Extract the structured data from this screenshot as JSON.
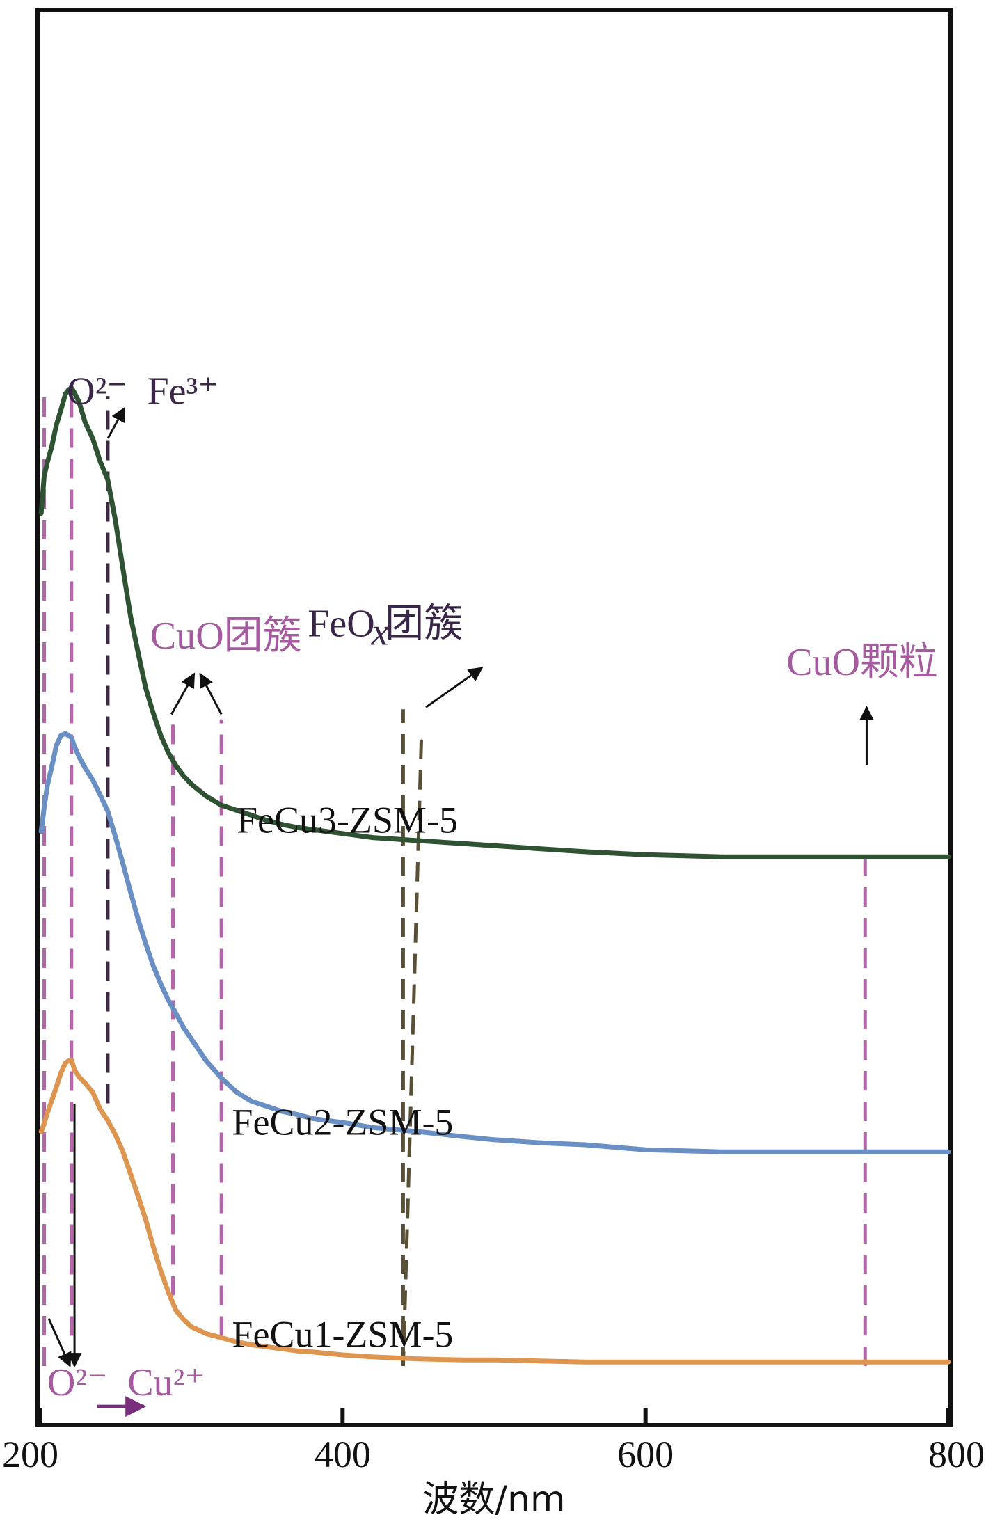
{
  "chart_data": {
    "type": "line",
    "title": "",
    "xlabel": "波数/nm",
    "ylabel": "",
    "xlim": [
      200,
      800
    ],
    "xticks": [
      200,
      400,
      600,
      800
    ],
    "x_tick_labels": [
      "200",
      "400",
      "600",
      "800"
    ],
    "yticks_shown": false,
    "grid": false,
    "legend": "none",
    "colors": {
      "FeCu3-ZSM-5": "#2e5232",
      "FeCu2-ZSM-5": "#6a8fc4",
      "FeCu1-ZSM-5": "#dd9550",
      "cu_guide": "#b266aa",
      "fe_guide": "#3f2a46",
      "feox_guide": "#5a5035",
      "annotation_purple": "#a65aa0",
      "annotation_dark": "#3a2648",
      "arrow": "#111111",
      "arrow_purple": "#7a2f7c"
    },
    "series": [
      {
        "name": "FeCu3-ZSM-5",
        "x": [
          201,
          203,
          205,
          208,
          211,
          214,
          217,
          219,
          221,
          223,
          226,
          230,
          235,
          240,
          245,
          250,
          255,
          260,
          265,
          270,
          275,
          280,
          285,
          290,
          295,
          300,
          310,
          320,
          330,
          340,
          350,
          360,
          370,
          380,
          400,
          420,
          450,
          480,
          500,
          530,
          560,
          600,
          650,
          700,
          750,
          800
        ],
        "y": [
          0.844,
          0.881,
          0.894,
          0.91,
          0.931,
          0.946,
          0.962,
          0.966,
          0.968,
          0.963,
          0.954,
          0.934,
          0.918,
          0.895,
          0.877,
          0.837,
          0.789,
          0.742,
          0.706,
          0.671,
          0.646,
          0.624,
          0.607,
          0.594,
          0.584,
          0.576,
          0.564,
          0.555,
          0.55,
          0.545,
          0.54,
          0.536,
          0.533,
          0.531,
          0.527,
          0.523,
          0.52,
          0.517,
          0.515,
          0.512,
          0.509,
          0.506,
          0.504,
          0.504,
          0.504,
          0.504
        ]
      },
      {
        "name": "FeCu2-ZSM-5",
        "x": [
          201,
          203,
          205,
          208,
          211,
          214,
          217,
          219,
          221,
          223,
          226,
          230,
          235,
          240,
          245,
          250,
          255,
          260,
          265,
          270,
          275,
          280,
          285,
          290,
          295,
          300,
          310,
          320,
          330,
          340,
          350,
          360,
          370,
          380,
          400,
          420,
          450,
          480,
          500,
          530,
          560,
          600,
          650,
          700,
          750,
          800
        ],
        "y": [
          0.529,
          0.553,
          0.574,
          0.593,
          0.614,
          0.624,
          0.626,
          0.624,
          0.622,
          0.613,
          0.603,
          0.592,
          0.58,
          0.565,
          0.549,
          0.524,
          0.497,
          0.469,
          0.442,
          0.418,
          0.396,
          0.378,
          0.362,
          0.349,
          0.335,
          0.324,
          0.302,
          0.285,
          0.271,
          0.262,
          0.257,
          0.252,
          0.249,
          0.245,
          0.241,
          0.236,
          0.232,
          0.227,
          0.224,
          0.221,
          0.219,
          0.214,
          0.212,
          0.212,
          0.212,
          0.212
        ]
      },
      {
        "name": "FeCu1-ZSM-5",
        "x": [
          201,
          203,
          205,
          208,
          211,
          214,
          217,
          219,
          221,
          223,
          226,
          230,
          235,
          240,
          245,
          250,
          255,
          260,
          265,
          270,
          275,
          280,
          285,
          290,
          295,
          300,
          310,
          320,
          330,
          340,
          350,
          360,
          370,
          380,
          400,
          420,
          450,
          480,
          500,
          530,
          560,
          600,
          650,
          700,
          750,
          800
        ],
        "y": [
          0.232,
          0.24,
          0.25,
          0.263,
          0.276,
          0.29,
          0.3,
          0.302,
          0.303,
          0.293,
          0.286,
          0.28,
          0.271,
          0.254,
          0.243,
          0.229,
          0.212,
          0.19,
          0.168,
          0.145,
          0.118,
          0.094,
          0.073,
          0.055,
          0.046,
          0.039,
          0.032,
          0.028,
          0.024,
          0.021,
          0.019,
          0.017,
          0.015,
          0.014,
          0.011,
          0.009,
          0.007,
          0.006,
          0.006,
          0.005,
          0.004,
          0.004,
          0.004,
          0.004,
          0.004,
          0.004
        ]
      }
    ],
    "series_labels": [
      {
        "text": "FeCu3-ZSM-5",
        "x": 330,
        "y": 0.528
      },
      {
        "text": "FeCu2-ZSM-5",
        "x": 327,
        "y": 0.229
      },
      {
        "text": "FeCu1-ZSM-5",
        "x": 327,
        "y": 0.019
      }
    ],
    "reference_lines": [
      {
        "x": 203,
        "from": 0.0,
        "to": 0.96,
        "kind": "cu_guide"
      },
      {
        "x": 221,
        "from": 0.03,
        "to": 0.96,
        "kind": "cu_guide"
      },
      {
        "x": 245,
        "from": 0.26,
        "to": 0.96,
        "kind": "fe_guide"
      },
      {
        "x": 288,
        "from": 0.07,
        "to": 0.64,
        "kind": "cu_guide"
      },
      {
        "x": 320,
        "from": 0.03,
        "to": 0.64,
        "kind": "cu_guide"
      },
      {
        "x": 452,
        "from": 0.62,
        "to": 0.62,
        "kind": "feox_guide"
      },
      {
        "x": 440,
        "from": 0.0,
        "to": 0.65,
        "kind": "feox_guide"
      },
      {
        "x": 745,
        "from": 0.0,
        "to": 0.508,
        "kind": "cu_guide"
      }
    ],
    "annotations": [
      {
        "text": "O²⁻",
        "x": 218,
        "y": 0.952,
        "kind": "annotation_dark"
      },
      {
        "text": "Fe³⁺",
        "x": 271,
        "y": 0.952,
        "kind": "annotation_dark"
      },
      {
        "text": "CuO团簇",
        "x": 273,
        "y": 0.71,
        "kind": "annotation_purple"
      },
      {
        "text": "FeO",
        "x": 377,
        "y": 0.722,
        "kind": "annotation_dark"
      },
      {
        "text": "x",
        "x": 419,
        "y": 0.714,
        "kind": "annotation_dark"
      },
      {
        "text": "团簇",
        "x": 428,
        "y": 0.722,
        "kind": "annotation_dark"
      },
      {
        "text": "CuO颗粒",
        "x": 693,
        "y": 0.684,
        "kind": "annotation_purple"
      },
      {
        "text": "O²⁻",
        "x": 205,
        "y": -0.029,
        "kind": "annotation_purple"
      },
      {
        "text": "Cu²⁺",
        "x": 258,
        "y": -0.029,
        "kind": "annotation_purple"
      }
    ],
    "arrows": [
      {
        "x1": 245,
        "y1": 0.918,
        "x2": 256,
        "y2": 0.948,
        "kind": "arrow"
      },
      {
        "x1": 287,
        "y1": 0.645,
        "x2": 302,
        "y2": 0.685,
        "kind": "arrow"
      },
      {
        "x1": 320,
        "y1": 0.645,
        "x2": 306,
        "y2": 0.685,
        "kind": "arrow"
      },
      {
        "x1": 455,
        "y1": 0.652,
        "x2": 492,
        "y2": 0.691,
        "kind": "arrow"
      },
      {
        "x1": 746,
        "y1": 0.595,
        "x2": 746,
        "y2": 0.652,
        "kind": "arrow"
      },
      {
        "x1": 223,
        "y1": 0.259,
        "x2": 223,
        "y2": 0.0,
        "kind": "arrow"
      },
      {
        "x1": 206,
        "y1": 0.047,
        "x2": 220,
        "y2": 0.0,
        "kind": "arrow"
      },
      {
        "x1": 238,
        "y1": -0.04,
        "x2": 269,
        "y2": -0.04,
        "kind": "arrow_purple"
      }
    ]
  }
}
